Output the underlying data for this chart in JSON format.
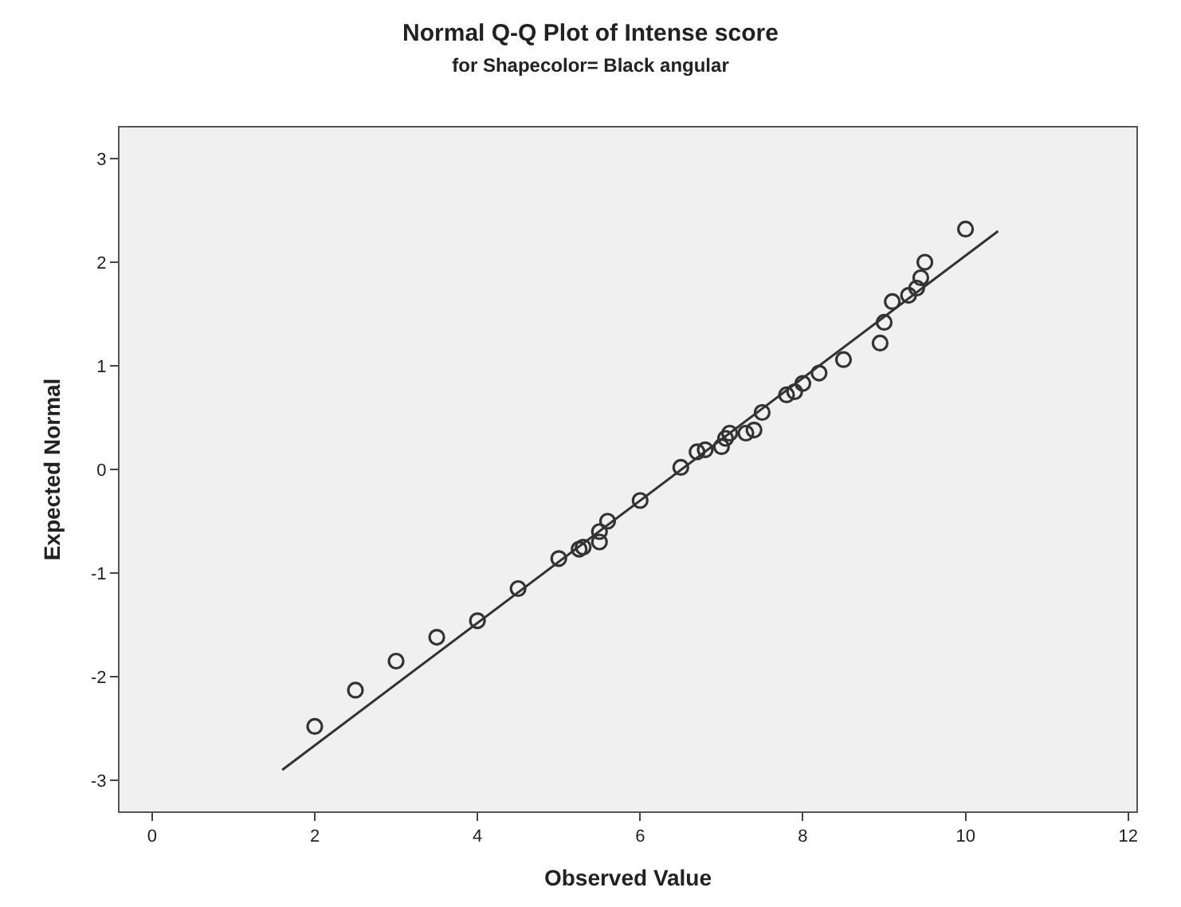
{
  "chart_data": {
    "type": "scatter",
    "title": "Normal Q-Q Plot of Intense score",
    "subtitle": "for Shapecolor= Black angular",
    "xlabel": "Observed Value",
    "ylabel": "Expected Normal",
    "xlim": [
      -0.4,
      12.1
    ],
    "ylim": [
      -3.3,
      3.3
    ],
    "xticks": [
      0,
      2,
      4,
      6,
      8,
      10,
      12
    ],
    "yticks": [
      -3,
      -2,
      -1,
      0,
      1,
      2,
      3
    ],
    "grid": false,
    "marker": "circle",
    "series": [
      {
        "color": "#333333",
        "x": [
          2,
          2.5,
          3,
          3.5,
          4,
          4.5,
          5,
          5.25,
          5.3,
          5.5,
          5.5,
          5.6,
          6,
          6.5,
          6.7,
          6.8,
          7,
          7.05,
          7.1,
          7.3,
          7.4,
          7.5,
          7.8,
          7.9,
          8,
          8.2,
          8.5,
          8.95,
          9,
          9.1,
          9.3,
          9.4,
          9.45,
          9.5,
          10
        ],
        "values": [
          -2.48,
          -2.13,
          -1.85,
          -1.62,
          -1.46,
          -1.15,
          -0.86,
          -0.77,
          -0.75,
          -0.6,
          -0.7,
          -0.5,
          -0.3,
          0.02,
          0.17,
          0.19,
          0.22,
          0.3,
          0.35,
          0.35,
          0.38,
          0.55,
          0.72,
          0.75,
          0.83,
          0.93,
          1.06,
          1.22,
          1.42,
          1.62,
          1.68,
          1.75,
          1.85,
          2.0,
          2.32
        ]
      },
      {
        "type": "line",
        "marker": "none",
        "color": "#333333",
        "x": [
          1.6,
          10.4
        ],
        "values": [
          -2.9,
          2.3
        ]
      }
    ]
  }
}
